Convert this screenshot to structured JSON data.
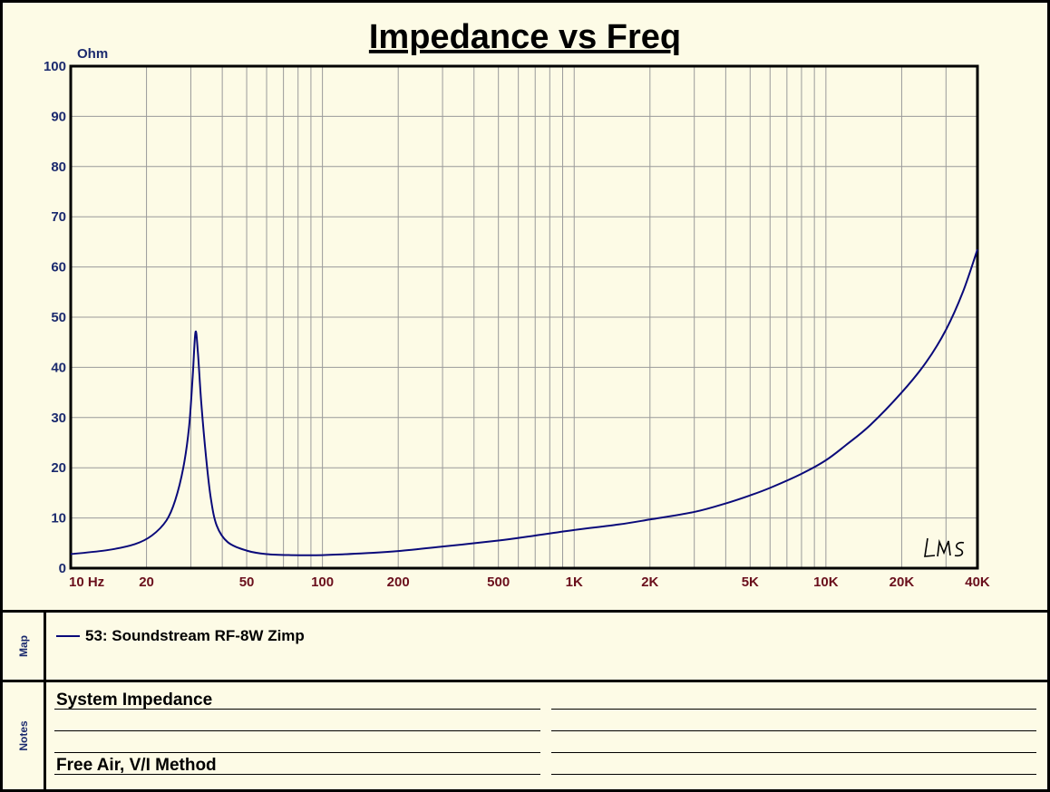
{
  "chart_data": {
    "type": "line",
    "title": "Impedance vs Freq",
    "ylabel": "Ohm",
    "xlabel": "",
    "x_scale": "log",
    "xlim": [
      10,
      40000
    ],
    "ylim": [
      0,
      100
    ],
    "grid": true,
    "y_ticks": [
      0,
      10,
      20,
      30,
      40,
      50,
      60,
      70,
      80,
      90,
      100
    ],
    "x_tick_labels": [
      {
        "value": 10,
        "label": "10 Hz"
      },
      {
        "value": 20,
        "label": "20"
      },
      {
        "value": 50,
        "label": "50"
      },
      {
        "value": 100,
        "label": "100"
      },
      {
        "value": 200,
        "label": "200"
      },
      {
        "value": 500,
        "label": "500"
      },
      {
        "value": 1000,
        "label": "1K"
      },
      {
        "value": 2000,
        "label": "2K"
      },
      {
        "value": 5000,
        "label": "5K"
      },
      {
        "value": 10000,
        "label": "10K"
      },
      {
        "value": 20000,
        "label": "20K"
      },
      {
        "value": 40000,
        "label": "40K"
      }
    ],
    "series": [
      {
        "name": "53: Soundstream RF-8W Zimp",
        "color": "#0a0a7a",
        "x": [
          10,
          14,
          18,
          21,
          24,
          26,
          28,
          29.5,
          30.5,
          31.3,
          32,
          33,
          34.5,
          36,
          38,
          42,
          50,
          60,
          75,
          100,
          150,
          200,
          300,
          500,
          700,
          1000,
          1500,
          2000,
          3000,
          4000,
          5000,
          6000,
          8000,
          10000,
          12000,
          15000,
          20000,
          25000,
          30000,
          35000,
          40000
        ],
        "y": [
          2.8,
          3.6,
          4.8,
          6.5,
          9.5,
          13.5,
          20,
          28,
          38,
          47,
          43,
          33,
          22,
          14,
          8.5,
          5.2,
          3.5,
          2.8,
          2.6,
          2.6,
          3.0,
          3.4,
          4.3,
          5.5,
          6.5,
          7.6,
          8.7,
          9.7,
          11.2,
          12.9,
          14.5,
          16.0,
          18.8,
          21.5,
          24.5,
          28.5,
          35.0,
          41.0,
          47.5,
          55.0,
          63.5
        ]
      }
    ]
  },
  "logo": "LMS",
  "map": {
    "label": "Map",
    "entries": [
      {
        "text": "53: Soundstream RF-8W Zimp",
        "color": "#0a0a7a"
      }
    ]
  },
  "notes": {
    "label": "Notes",
    "line1": "System Impedance",
    "line4": "Free Air, V/I Method"
  },
  "colors": {
    "background": "#fdfbe6",
    "axis_text": "#1b2a6e",
    "x_tick_text": "#6a0f1c",
    "grid": "#9a9a9a"
  }
}
